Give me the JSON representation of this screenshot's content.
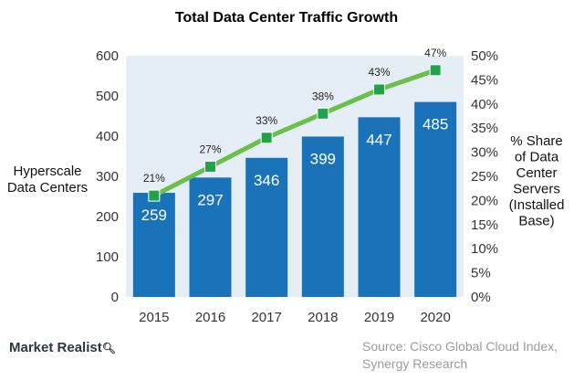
{
  "chart_data": {
    "type": "bar",
    "title": "Total Data Center Traffic Growth",
    "categories": [
      "2015",
      "2016",
      "2017",
      "2018",
      "2019",
      "2020"
    ],
    "series": [
      {
        "type": "bar",
        "axis": "left",
        "values": [
          259,
          297,
          346,
          399,
          447,
          485
        ],
        "labels": [
          "259",
          "297",
          "346",
          "399",
          "447",
          "485"
        ],
        "color": "#1a73b8"
      },
      {
        "type": "line",
        "axis": "right",
        "values": [
          21,
          27,
          33,
          38,
          43,
          47
        ],
        "labels": [
          "21%",
          "27%",
          "33%",
          "38%",
          "43%",
          "47%"
        ],
        "color": "#6abf4b",
        "marker_color": "#22a34a"
      }
    ],
    "y_left": {
      "label_lines": [
        "Hyperscale",
        "Data Centers"
      ],
      "lim": [
        0,
        600
      ],
      "ticks": [
        "0",
        "100",
        "200",
        "300",
        "400",
        "500",
        "600"
      ]
    },
    "y_right": {
      "label_lines": [
        "% Share",
        "of Data",
        "Center",
        "Servers",
        "(Installed",
        "Base)"
      ],
      "lim": [
        0,
        50
      ],
      "ticks": [
        "0%",
        "5%",
        "10%",
        "15%",
        "20%",
        "25%",
        "30%",
        "35%",
        "40%",
        "45%",
        "50%"
      ]
    },
    "plot_background": "#e6eef5",
    "grid": false
  },
  "footer": {
    "brand": "Market Realist",
    "brand_icon": "magnifier-icon",
    "source_line1": "Source:  Cisco Global Cloud Index,",
    "source_line2": "Synergy Research"
  }
}
